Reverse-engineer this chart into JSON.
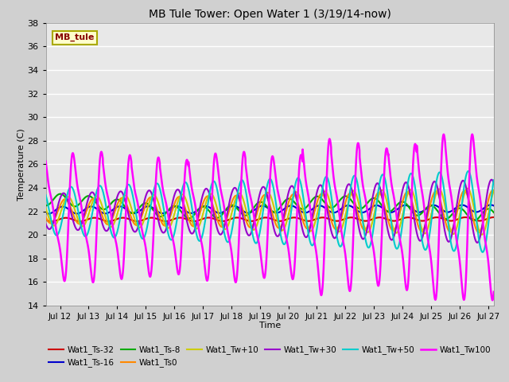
{
  "title": "MB Tule Tower: Open Water 1 (3/19/14-now)",
  "xlabel": "Time",
  "ylabel": "Temperature (C)",
  "ylim": [
    14,
    38
  ],
  "yticks": [
    14,
    16,
    18,
    20,
    22,
    24,
    26,
    28,
    30,
    32,
    34,
    36,
    38
  ],
  "xlim_days": [
    11.5,
    27.2
  ],
  "xtick_positions": [
    12,
    13,
    14,
    15,
    16,
    17,
    18,
    19,
    20,
    21,
    22,
    23,
    24,
    25,
    26,
    27
  ],
  "xtick_labels": [
    "Jul 12",
    "Jul 13",
    "Jul 14",
    "Jul 15",
    "Jul 16",
    "Jul 17",
    "Jul 18",
    "Jul 19",
    "Jul 20",
    "Jul 21",
    "Jul 22",
    "Jul 23",
    "Jul 24",
    "Jul 25",
    "Jul 26",
    "Jul 27"
  ],
  "series": {
    "Wat1_Ts-32": {
      "color": "#cc0000",
      "lw": 1.5
    },
    "Wat1_Ts-16": {
      "color": "#0000cc",
      "lw": 1.5
    },
    "Wat1_Ts-8": {
      "color": "#00aa00",
      "lw": 1.5
    },
    "Wat1_Ts0": {
      "color": "#ff8800",
      "lw": 1.5
    },
    "Wat1_Tw+10": {
      "color": "#cccc00",
      "lw": 1.5
    },
    "Wat1_Tw+30": {
      "color": "#9900cc",
      "lw": 1.5
    },
    "Wat1_Tw+50": {
      "color": "#00cccc",
      "lw": 1.5
    },
    "Wat1_Tw100": {
      "color": "#ff00ff",
      "lw": 1.8
    }
  },
  "bg_color": "#e8e8e8",
  "legend_box_color": "#ffffcc",
  "legend_box_edge": "#aaaa00",
  "legend_text_color": "#880000"
}
